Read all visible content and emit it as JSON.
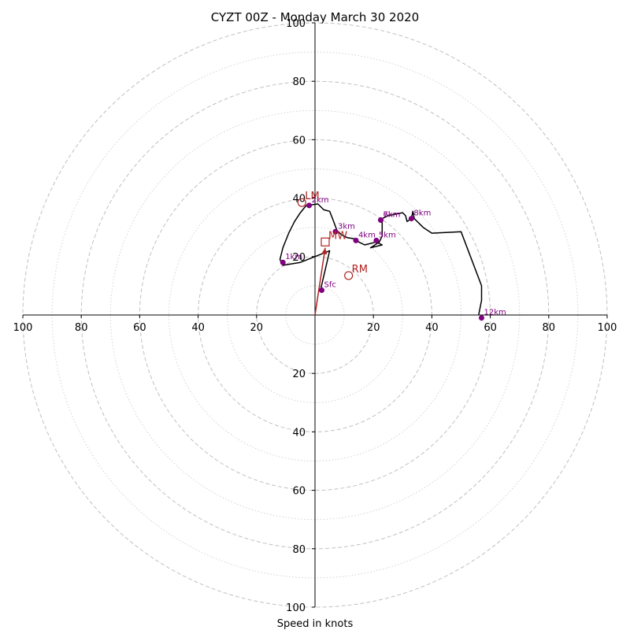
{
  "chart_data": {
    "type": "hodograph",
    "title": "CYZT 00Z - Monday March 30 2020",
    "xlabel": "Speed in knots",
    "range": [
      -100,
      100
    ],
    "ring_step": 10,
    "tick_labels": {
      "right": [
        "20",
        "40",
        "60",
        "80",
        "100"
      ],
      "left": [
        "20",
        "40",
        "60",
        "80",
        "100"
      ],
      "up": [
        "20",
        "40",
        "60",
        "80",
        "100"
      ],
      "down": [
        "20",
        "40",
        "60",
        "80",
        "100"
      ]
    },
    "trace": [
      [
        2,
        9
      ],
      [
        5,
        22
      ],
      [
        -5,
        18
      ],
      [
        -11,
        17
      ],
      [
        -12,
        19
      ],
      [
        -11,
        23
      ],
      [
        -9,
        28
      ],
      [
        -7,
        32
      ],
      [
        -5,
        35
      ],
      [
        -3,
        37.5
      ],
      [
        1,
        38
      ],
      [
        3,
        36
      ],
      [
        5,
        35.5
      ],
      [
        6,
        33
      ],
      [
        7.5,
        29
      ],
      [
        9,
        27.5
      ],
      [
        11,
        26.5
      ],
      [
        14,
        26
      ],
      [
        15,
        25
      ],
      [
        17,
        24
      ],
      [
        21,
        25
      ],
      [
        23,
        24
      ],
      [
        19,
        23
      ],
      [
        22,
        25
      ],
      [
        23,
        27
      ],
      [
        23,
        31.5
      ],
      [
        23,
        33
      ],
      [
        25,
        34
      ],
      [
        30,
        35
      ],
      [
        31,
        34
      ],
      [
        31.5,
        32
      ],
      [
        33,
        33
      ],
      [
        33.5,
        35.5
      ],
      [
        34,
        33
      ],
      [
        37,
        30
      ],
      [
        40,
        28
      ],
      [
        50,
        28.5
      ],
      [
        57,
        10
      ],
      [
        57,
        5
      ],
      [
        56,
        0
      ]
    ],
    "height_markers": [
      {
        "label": "Sfc",
        "u": 2.3,
        "v": 8.5
      },
      {
        "label": "1km",
        "u": -11,
        "v": 18
      },
      {
        "label": "2km",
        "u": -2,
        "v": 37.5
      },
      {
        "label": "3km",
        "u": 7,
        "v": 28.5
      },
      {
        "label": "4km",
        "u": 14,
        "v": 25.5
      },
      {
        "label": "5km",
        "u": 21,
        "v": 25.5
      },
      {
        "label": "6km",
        "u": 22.5,
        "v": 32.5
      },
      {
        "label": "7km",
        "u": 22.5,
        "v": 32.5
      },
      {
        "label": "8km",
        "u": 33,
        "v": 33
      },
      {
        "label": "12km",
        "u": 57,
        "v": -1
      }
    ],
    "storm_motions": [
      {
        "label": "LM",
        "u": -4.5,
        "v": 38.5,
        "symbol": "circle"
      },
      {
        "label": "RM",
        "u": 11.5,
        "v": 13.5,
        "symbol": "circle"
      },
      {
        "label": "MW",
        "u": 3.5,
        "v": 25,
        "symbol": "square"
      }
    ],
    "vector": {
      "from": [
        0,
        0
      ],
      "to": [
        3.5,
        23
      ]
    },
    "colors": {
      "trace": "#000000",
      "markers": "#800080",
      "storm_motion": "#b22222",
      "major_rings": "#c0c0c0",
      "minor_rings": "#d3d3d3"
    }
  }
}
